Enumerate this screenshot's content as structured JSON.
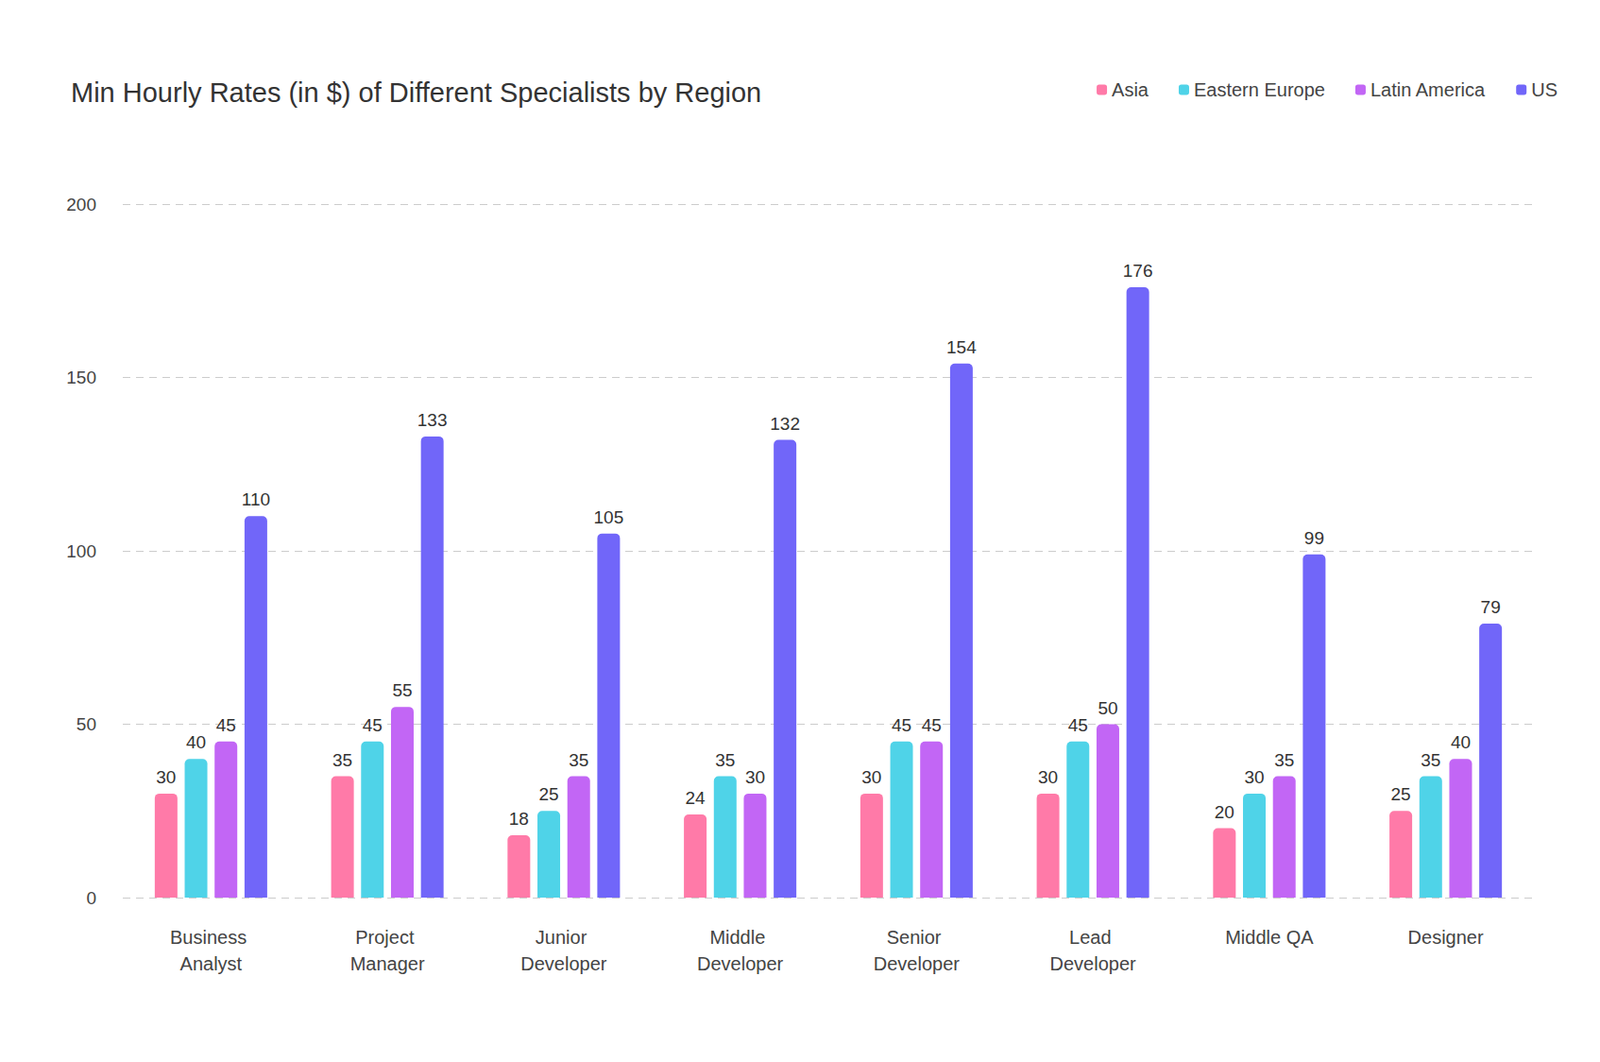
{
  "chart_data": {
    "type": "bar",
    "title": "Min Hourly Rates (in $) of Different Specialists by Region",
    "categories": [
      "Business Analyst",
      "Project Manager",
      "Junior Developer",
      "Middle Developer",
      "Senior Developer",
      "Lead Developer",
      "Middle QA",
      "Designer"
    ],
    "series": [
      {
        "name": "Asia",
        "color": "#ff7aa8",
        "values": [
          30,
          35,
          18,
          24,
          30,
          30,
          20,
          25
        ]
      },
      {
        "name": "Eastern Europe",
        "color": "#4fd3e8",
        "values": [
          40,
          45,
          25,
          35,
          45,
          45,
          30,
          35
        ]
      },
      {
        "name": "Latin America",
        "color": "#c266f5",
        "values": [
          45,
          55,
          35,
          30,
          45,
          50,
          35,
          40
        ]
      },
      {
        "name": "US",
        "color": "#7166f9",
        "values": [
          110,
          133,
          105,
          132,
          154,
          176,
          99,
          79
        ]
      }
    ],
    "ylim": [
      0,
      200
    ],
    "yticks": [
      0,
      50,
      100,
      150,
      200
    ],
    "grid": true,
    "legend": "top-right",
    "data_labels": true
  }
}
